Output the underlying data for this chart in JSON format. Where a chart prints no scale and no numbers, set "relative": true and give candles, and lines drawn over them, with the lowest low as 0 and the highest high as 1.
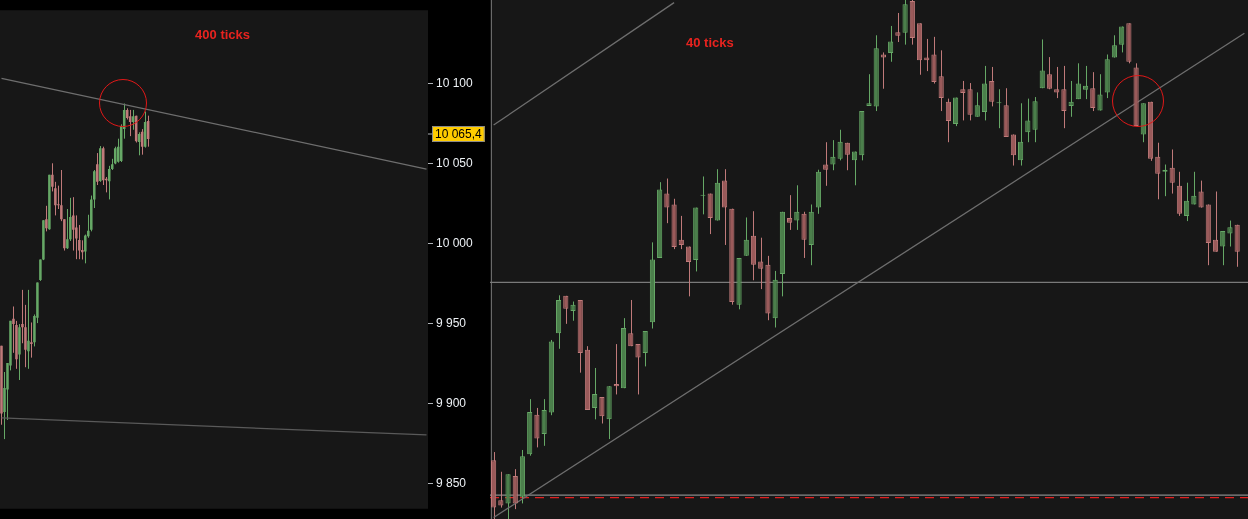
{
  "chart_data": [
    {
      "type": "candlestick",
      "annotations": [
        "400 ticks",
        "10 065,4"
      ],
      "categories": [
        null,
        null,
        null,
        null,
        null,
        null,
        null,
        null,
        null,
        null,
        null,
        null,
        null,
        null,
        null,
        null,
        null,
        null,
        null,
        null,
        null,
        null,
        null,
        null,
        null,
        null,
        null,
        null,
        null,
        null,
        null,
        null,
        null,
        null,
        null,
        null,
        null,
        null,
        null,
        null,
        null,
        null,
        null,
        null,
        null,
        null,
        null,
        null,
        null,
        null,
        null,
        null,
        null,
        null,
        null,
        null,
        null,
        null,
        null,
        null,
        null,
        null,
        null,
        null,
        null,
        null,
        null,
        null,
        null,
        null,
        null,
        null,
        null,
        null,
        null,
        null,
        null,
        null,
        null,
        null,
        null,
        null,
        null,
        null,
        null,
        null,
        null,
        null,
        null,
        null,
        null,
        null,
        null,
        null,
        null,
        null,
        null,
        null,
        null,
        null,
        null,
        null,
        null,
        null,
        null,
        null,
        null,
        null,
        null,
        null,
        null,
        null,
        null,
        null,
        null,
        null,
        null,
        null,
        null,
        null,
        null,
        null,
        null,
        null,
        null,
        null,
        null,
        null,
        null,
        null,
        null,
        null,
        null,
        null,
        null,
        null,
        null,
        null,
        null,
        null,
        null,
        null,
        null
      ],
      "ohlc": [
        [
          9936,
          9936,
          9886.6,
          9893.6
        ],
        [
          9894.6,
          9919.6,
          9877.6,
          9909.6
        ],
        [
          9908.6,
          9925.2,
          9889.6,
          9925.2
        ],
        [
          9923.6,
          9951.6,
          9920.6,
          9951.6
        ],
        [
          9953,
          9960.6,
          9931.6,
          9949.6
        ],
        [
          9949,
          9951.6,
          9921.6,
          9927.6
        ],
        [
          9930.6,
          9949.6,
          9914.6,
          9947.6
        ],
        [
          9949.6,
          9971,
          9937.6,
          9947.6
        ],
        [
          9947.6,
          9961.6,
          9922.6,
          9933.6
        ],
        [
          9932.6,
          9971,
          9921.6,
          9939.2
        ],
        [
          9938.2,
          9950.6,
          9928.6,
          9937.2
        ],
        [
          9938.2,
          9955.6,
          9935.6,
          9954.6
        ],
        [
          9953.6,
          9975.6,
          9950.2,
          9975.6
        ],
        [
          9977.2,
          9990,
          9976.6,
          9990
        ],
        [
          9990,
          10014.6,
          9989.6,
          10014.6
        ],
        [
          10015.2,
          10023.6,
          10007.6,
          10009.6
        ],
        [
          10009,
          10043,
          10008.6,
          10043
        ],
        [
          10043,
          10050.2,
          10032.6,
          10035.6
        ],
        [
          10034.6,
          10038.6,
          10017.6,
          10024
        ],
        [
          10024.6,
          10036.2,
          10021.6,
          10024
        ],
        [
          10024,
          10046,
          10014,
          10015.2
        ],
        [
          10015.2,
          10015.2,
          9995.6,
          9997
        ],
        [
          9997,
          10021.6,
          9996.6,
          10002.6
        ],
        [
          10002.6,
          10028.6,
          10001.6,
          10016.6
        ],
        [
          10017.6,
          10029,
          9995.6,
          10008.6
        ],
        [
          10010,
          10017.6,
          9990.2,
          10003.2
        ],
        [
          10002.2,
          10011.6,
          9990.2,
          9995.6
        ],
        [
          9996,
          10002,
          9990,
          9994.6
        ],
        [
          9995,
          10005.6,
          9987.6,
          10005
        ],
        [
          10004.6,
          10018,
          10003.6,
          10008
        ],
        [
          10008.6,
          10030,
          10007.6,
          10027.6
        ],
        [
          10027.6,
          10046,
          10022.2,
          10045.2
        ],
        [
          10049.6,
          10056.6,
          10036.6,
          10038.6
        ],
        [
          10039.2,
          10061,
          10038.6,
          10059.6
        ],
        [
          10059.6,
          10060.6,
          10036.6,
          10039.6
        ],
        [
          10040.6,
          10041.6,
          10032,
          10039.6
        ],
        [
          10039,
          10048.6,
          10027.6,
          10046.6
        ],
        [
          10046.6,
          10053,
          10046,
          10049.6
        ],
        [
          10050,
          10060.6,
          10049.6,
          10059.6
        ],
        [
          10051.2,
          10065.6,
          10050.6,
          10060.6
        ],
        [
          10051.6,
          10074.6,
          10051,
          10073.6
        ],
        [
          10071.6,
          10087.6,
          10065.6,
          10083.6
        ],
        [
          10083.6,
          10084.6,
          10077.6,
          10078.6
        ],
        [
          10079.6,
          10083.6,
          10067.2,
          10076
        ],
        [
          10076,
          10083.6,
          10071.2,
          10079.6
        ],
        [
          10080,
          10080,
          10063.2,
          10064
        ],
        [
          10063.6,
          10069.6,
          10055.2,
          10068.6
        ],
        [
          10070,
          10071.6,
          10055.6,
          10060.6
        ],
        [
          10060.6,
          10082.6,
          10060,
          10076
        ],
        [
          10076.6,
          10080,
          10060.6,
          10065.4
        ],
        null,
        null,
        null,
        null,
        null,
        null,
        null,
        null,
        null,
        null,
        null,
        null,
        null,
        null,
        null,
        null,
        null,
        null,
        null,
        null,
        null,
        null,
        null,
        null,
        null,
        null,
        null,
        null,
        null,
        null,
        null,
        null,
        null,
        null,
        null,
        null,
        null,
        null,
        null,
        null,
        null,
        null,
        null,
        null,
        null,
        null,
        null,
        null,
        null,
        null,
        null,
        null,
        null,
        null,
        null,
        null,
        null,
        null,
        null,
        null,
        null,
        null,
        null,
        null,
        null,
        null,
        null,
        null,
        null,
        null,
        null,
        null,
        null,
        null,
        null,
        null,
        null,
        null,
        null,
        null,
        null,
        null,
        null,
        null,
        null,
        null,
        null,
        null,
        null,
        null,
        null,
        null,
        null
      ],
      "series": [
        {
          "type": "line",
          "color": "#6e6e6e",
          "values": [
            10103.4,
            null,
            null,
            null,
            null,
            null,
            null,
            null,
            null,
            null,
            null,
            null,
            null,
            null,
            null,
            null,
            null,
            null,
            null,
            null,
            null,
            null,
            null,
            null,
            null,
            null,
            null,
            null,
            null,
            null,
            null,
            null,
            null,
            null,
            null,
            null,
            null,
            null,
            null,
            null,
            null,
            null,
            null,
            null,
            null,
            null,
            null,
            null,
            null,
            null,
            null,
            null,
            null,
            null,
            null,
            null,
            null,
            null,
            null,
            null,
            null,
            null,
            null,
            null,
            null,
            null,
            null,
            null,
            null,
            null,
            null,
            null,
            null,
            null,
            null,
            null,
            null,
            null,
            null,
            null,
            null,
            null,
            null,
            null,
            null,
            null,
            null,
            null,
            null,
            null,
            null,
            null,
            null,
            null,
            null,
            null,
            null,
            null,
            null,
            null,
            null,
            null,
            null,
            null,
            null,
            null,
            null,
            null,
            null,
            null,
            null,
            null,
            null,
            null,
            null,
            null,
            null,
            null,
            null,
            null,
            null,
            null,
            null,
            null,
            null,
            null,
            null,
            null,
            null,
            null,
            null,
            null,
            null,
            null,
            null,
            null,
            null,
            null,
            null,
            null,
            null,
            null,
            10046.6
          ]
        },
        {
          "type": "line",
          "color": "#5a5a5a",
          "values": [
            9890.9,
            null,
            null,
            null,
            null,
            null,
            null,
            null,
            null,
            null,
            null,
            null,
            null,
            null,
            null,
            null,
            null,
            null,
            null,
            null,
            null,
            null,
            null,
            null,
            null,
            null,
            null,
            null,
            null,
            null,
            null,
            null,
            null,
            null,
            null,
            null,
            null,
            null,
            null,
            null,
            null,
            null,
            null,
            null,
            null,
            null,
            null,
            null,
            null,
            null,
            null,
            null,
            null,
            null,
            null,
            null,
            null,
            null,
            null,
            null,
            null,
            null,
            null,
            null,
            null,
            null,
            null,
            null,
            null,
            null,
            null,
            null,
            null,
            null,
            null,
            null,
            null,
            null,
            null,
            null,
            null,
            null,
            null,
            null,
            null,
            null,
            null,
            null,
            null,
            null,
            null,
            null,
            null,
            null,
            null,
            null,
            null,
            null,
            null,
            null,
            null,
            null,
            null,
            null,
            null,
            null,
            null,
            null,
            null,
            null,
            null,
            null,
            null,
            null,
            null,
            null,
            null,
            null,
            null,
            null,
            null,
            null,
            null,
            null,
            null,
            null,
            null,
            null,
            null,
            null,
            null,
            null,
            null,
            null,
            null,
            null,
            null,
            null,
            null,
            null,
            null,
            null,
            9880.2
          ]
        }
      ],
      "ylim": [
        9834,
        10146
      ],
      "yticks": [
        {
          "value": 9850,
          "label": "9 850"
        },
        {
          "value": 9900,
          "label": "9 900"
        },
        {
          "value": 9950,
          "label": "9 950"
        },
        {
          "value": 10000,
          "label": "10 000"
        },
        {
          "value": 10050,
          "label": "10 050"
        },
        {
          "value": 10100,
          "label": "10 100"
        }
      ],
      "tick_labels": "y"
    },
    {
      "type": "candlestick",
      "relative": true,
      "annotations": [
        "40 ticks"
      ],
      "categories": [
        null,
        null,
        null,
        null,
        null,
        null,
        null,
        null,
        null,
        null,
        null,
        null,
        null,
        null,
        null,
        null,
        null,
        null,
        null,
        null,
        null,
        null,
        null,
        null,
        null,
        null,
        null,
        null,
        null,
        null,
        null,
        null,
        null,
        null,
        null,
        null,
        null,
        null,
        null,
        null,
        null,
        null,
        null,
        null,
        null,
        null,
        null,
        null,
        null,
        null,
        null,
        null,
        null,
        null,
        null,
        null,
        null,
        null,
        null,
        null,
        null,
        null,
        null,
        null,
        null,
        null,
        null,
        null,
        null,
        null,
        null,
        null,
        null,
        null,
        null,
        null,
        null,
        null,
        null,
        null,
        null,
        null,
        null,
        null,
        null,
        null,
        null,
        null,
        null,
        null,
        null,
        null,
        null,
        null,
        null,
        null,
        null,
        null,
        null,
        null,
        null,
        null,
        null,
        null,
        null
      ],
      "ohlc": [
        [
          0.113,
          0.129,
          0,
          0.022
        ],
        [
          0.036,
          0.091,
          0.022,
          0.026
        ],
        [
          0.03,
          0.086,
          0,
          0.086
        ],
        [
          0.083,
          0.096,
          0.019,
          0.03
        ],
        [
          0.043,
          0.133,
          0.03,
          0.121
        ],
        [
          0.125,
          0.231,
          0.122,
          0.206
        ],
        [
          0.201,
          0.214,
          0.138,
          0.155
        ],
        [
          0.164,
          0.231,
          0.141,
          0.21
        ],
        [
          0.205,
          0.345,
          0.2,
          0.342
        ],
        [
          0.358,
          0.431,
          0.328,
          0.422
        ],
        [
          0.43,
          0.43,
          0.376,
          0.405
        ],
        [
          0.401,
          0.419,
          0.382,
          0.413
        ],
        [
          0.422,
          0.422,
          0.282,
          0.32
        ],
        [
          0.326,
          0.333,
          0.21,
          0.21
        ],
        [
          0.214,
          0.291,
          0.192,
          0.241
        ],
        [
          0.235,
          0.235,
          0.184,
          0.198
        ],
        [
          0.192,
          0.256,
          0.154,
          0.256
        ],
        [
          0.26,
          0.337,
          0.24,
          0.256
        ],
        [
          0.252,
          0.387,
          0.252,
          0.368
        ],
        [
          0.358,
          0.422,
          0.333,
          0.333
        ],
        [
          0.337,
          0.337,
          0.24,
          0.311
        ],
        [
          0.32,
          0.362,
          0.294,
          0.362
        ],
        [
          0.379,
          0.533,
          0.367,
          0.5
        ],
        [
          0.503,
          0.649,
          0.503,
          0.635
        ],
        [
          0.627,
          0.656,
          0.57,
          0.6
        ],
        [
          0.606,
          0.617,
          0.52,
          0.524
        ],
        [
          0.538,
          0.584,
          0.52,
          0.528
        ],
        [
          0.525,
          0.525,
          0.429,
          0.495
        ],
        [
          0.499,
          0.6,
          0.477,
          0.6
        ],
        [
          0.623,
          0.66,
          0.587,
          0.623
        ],
        [
          0.627,
          0.627,
          0.549,
          0.58
        ],
        [
          0.575,
          0.674,
          0.575,
          0.648
        ],
        [
          0.652,
          0.674,
          0.528,
          0.6
        ],
        [
          0.598,
          0.598,
          0.413,
          0.418
        ],
        [
          0.413,
          0.503,
          0.404,
          0.503
        ],
        [
          0.507,
          0.581,
          0.507,
          0.538
        ],
        [
          0.546,
          0.593,
          0.46,
          0.49
        ],
        [
          0.496,
          0.542,
          0.443,
          0.482
        ],
        [
          0.49,
          0.507,
          0.383,
          0.396
        ],
        [
          0.387,
          0.478,
          0.369,
          0.461
        ],
        [
          0.472,
          0.592,
          0.429,
          0.592
        ],
        [
          0.58,
          0.624,
          0.557,
          0.571
        ],
        [
          0.575,
          0.643,
          0.557,
          0.592
        ],
        [
          0.588,
          0.592,
          0.503,
          0.538
        ],
        [
          0.528,
          0.606,
          0.489,
          0.592
        ],
        [
          0.6,
          0.673,
          0.588,
          0.669
        ],
        [
          0.683,
          0.726,
          0.642,
          0.673
        ],
        [
          0.683,
          0.73,
          0.672,
          0.698
        ],
        [
          0.694,
          0.75,
          0.691,
          0.727
        ],
        [
          0.725,
          0.725,
          0.672,
          0.702
        ],
        [
          0.691,
          0.708,
          0.643,
          0.708
        ],
        [
          0.701,
          0.786,
          0.691,
          0.786
        ],
        [
          0.796,
          0.857,
          0.796,
          0.801
        ],
        [
          0.795,
          0.932,
          0.786,
          0.907
        ],
        [
          0.895,
          0.899,
          0.829,
          0.889
        ],
        [
          0.898,
          0.95,
          0.881,
          0.92
        ],
        [
          0.938,
          0.975,
          0.919,
          0.931
        ],
        [
          0.937,
          1,
          0.914,
          0.992
        ],
        [
          0.998,
          1,
          0.914,
          0.927
        ],
        [
          0.955,
          0.955,
          0.856,
          0.884
        ],
        [
          0.889,
          0.925,
          0.863,
          0.884
        ],
        [
          0.895,
          0.929,
          0.839,
          0.842
        ],
        [
          0.853,
          0.903,
          0.786,
          0.811
        ],
        [
          0.804,
          0.81,
          0.726,
          0.767
        ],
        [
          0.761,
          0.812,
          0.757,
          0.812
        ],
        [
          0.828,
          0.844,
          0.768,
          0.821
        ],
        [
          0.828,
          0.84,
          0.768,
          0.779
        ],
        [
          0.775,
          0.822,
          0.775,
          0.797
        ],
        [
          0.784,
          0.873,
          0.768,
          0.839
        ],
        [
          0.844,
          0.871,
          0.795,
          0.804
        ],
        [
          0.801,
          0.828,
          0.753,
          0.801
        ],
        [
          0.797,
          0.83,
          0.736,
          0.736
        ],
        [
          0.741,
          0.741,
          0.681,
          0.701
        ],
        [
          0.691,
          0.801,
          0.681,
          0.727
        ],
        [
          0.745,
          0.81,
          0.726,
          0.768
        ],
        [
          0.75,
          0.813,
          0.726,
          0.805
        ],
        [
          0.83,
          0.924,
          0.83,
          0.864
        ],
        [
          0.857,
          0.89,
          0.828,
          0.829
        ],
        [
          0.828,
          0.871,
          0.811,
          0.822
        ],
        [
          0.828,
          0.873,
          0.753,
          0.786
        ],
        [
          0.796,
          0.844,
          0.775,
          0.804
        ],
        [
          0.809,
          0.878,
          0.809,
          0.839
        ],
        [
          0.827,
          0.873,
          0.809,
          0.835
        ],
        [
          0.83,
          0.861,
          0.786,
          0.792
        ],
        [
          0.787,
          0.857,
          0.787,
          0.818
        ],
        [
          0.822,
          0.895,
          0.811,
          0.886
        ],
        [
          0.889,
          0.932,
          0.889,
          0.913
        ],
        [
          0.914,
          0.949,
          0.899,
          0.949
        ],
        [
          0.955,
          0.955,
          0.878,
          0.881
        ],
        [
          0.87,
          0.878,
          0.757,
          0.757
        ],
        [
          0.741,
          0.801,
          0.726,
          0.801
        ],
        [
          0.804,
          0.804,
          0.69,
          0.694
        ],
        [
          0.698,
          0.725,
          0.616,
          0.665
        ],
        [
          0.669,
          0.683,
          0.622,
          0.673
        ],
        [
          0.677,
          0.712,
          0.627,
          0.648
        ],
        [
          0.642,
          0.669,
          0.584,
          0.588
        ],
        [
          0.584,
          0.648,
          0.574,
          0.613
        ],
        [
          0.606,
          0.669,
          0.606,
          0.623
        ],
        [
          0.631,
          0.652,
          0.6,
          0.6
        ],
        [
          0.606,
          0.606,
          0.489,
          0.532
        ],
        [
          0.538,
          0.631,
          0.515,
          0.515
        ],
        [
          0.525,
          0.555,
          0.489,
          0.555
        ],
        [
          0.55,
          0.575,
          0.525,
          0.562
        ],
        [
          0.567,
          0.567,
          0.486,
          0.515
        ],
        null
      ],
      "series": [
        {
          "type": "line",
          "color": "#6e6e6e",
          "values": [
            0.759,
            null,
            null,
            null,
            null,
            null,
            null,
            null,
            null,
            null,
            null,
            null,
            null,
            null,
            null,
            null,
            null,
            null,
            null,
            null,
            null,
            null,
            null,
            null,
            null,
            0.995,
            null,
            null,
            null,
            null,
            null,
            null,
            null,
            null,
            null,
            null,
            null,
            null,
            null,
            null,
            null,
            null,
            null,
            null,
            null,
            null,
            null,
            null,
            null,
            null,
            null,
            null,
            null,
            null,
            null,
            null,
            null,
            null,
            null,
            null,
            null,
            null,
            null,
            null,
            null,
            null,
            null,
            null,
            null,
            null,
            null,
            null,
            null,
            null,
            null,
            null,
            null,
            null,
            null,
            null,
            null,
            null,
            null,
            null,
            null,
            null,
            null,
            null,
            null,
            null,
            null,
            null,
            null,
            null,
            null,
            null,
            null,
            null,
            null,
            null,
            null,
            null,
            null,
            null,
            null
          ]
        },
        {
          "type": "line",
          "color": "#6e6e6e",
          "values": [
            0.003,
            null,
            null,
            null,
            null,
            null,
            null,
            null,
            null,
            null,
            null,
            null,
            null,
            null,
            null,
            null,
            null,
            null,
            null,
            null,
            null,
            null,
            null,
            null,
            null,
            null,
            null,
            null,
            null,
            null,
            null,
            null,
            null,
            null,
            null,
            null,
            null,
            null,
            null,
            null,
            null,
            null,
            null,
            null,
            null,
            null,
            null,
            null,
            null,
            null,
            null,
            null,
            null,
            null,
            null,
            null,
            null,
            null,
            null,
            null,
            null,
            null,
            null,
            null,
            null,
            null,
            null,
            null,
            null,
            null,
            null,
            null,
            null,
            null,
            null,
            null,
            null,
            null,
            null,
            null,
            null,
            null,
            null,
            null,
            null,
            null,
            null,
            null,
            null,
            null,
            null,
            null,
            null,
            null,
            null,
            null,
            null,
            null,
            null,
            null,
            null,
            null,
            null,
            null,
            0.936
          ]
        }
      ],
      "ref_lines": [
        {
          "axis": "y",
          "value": 0.456,
          "color": "#7a7a7a"
        },
        {
          "axis": "y",
          "value": 0.046,
          "color": "#8a8a8a"
        },
        {
          "axis": "y",
          "value": 0.041,
          "color": "#e02020",
          "line_style": "dashed"
        }
      ],
      "tick_labels": false
    }
  ]
}
